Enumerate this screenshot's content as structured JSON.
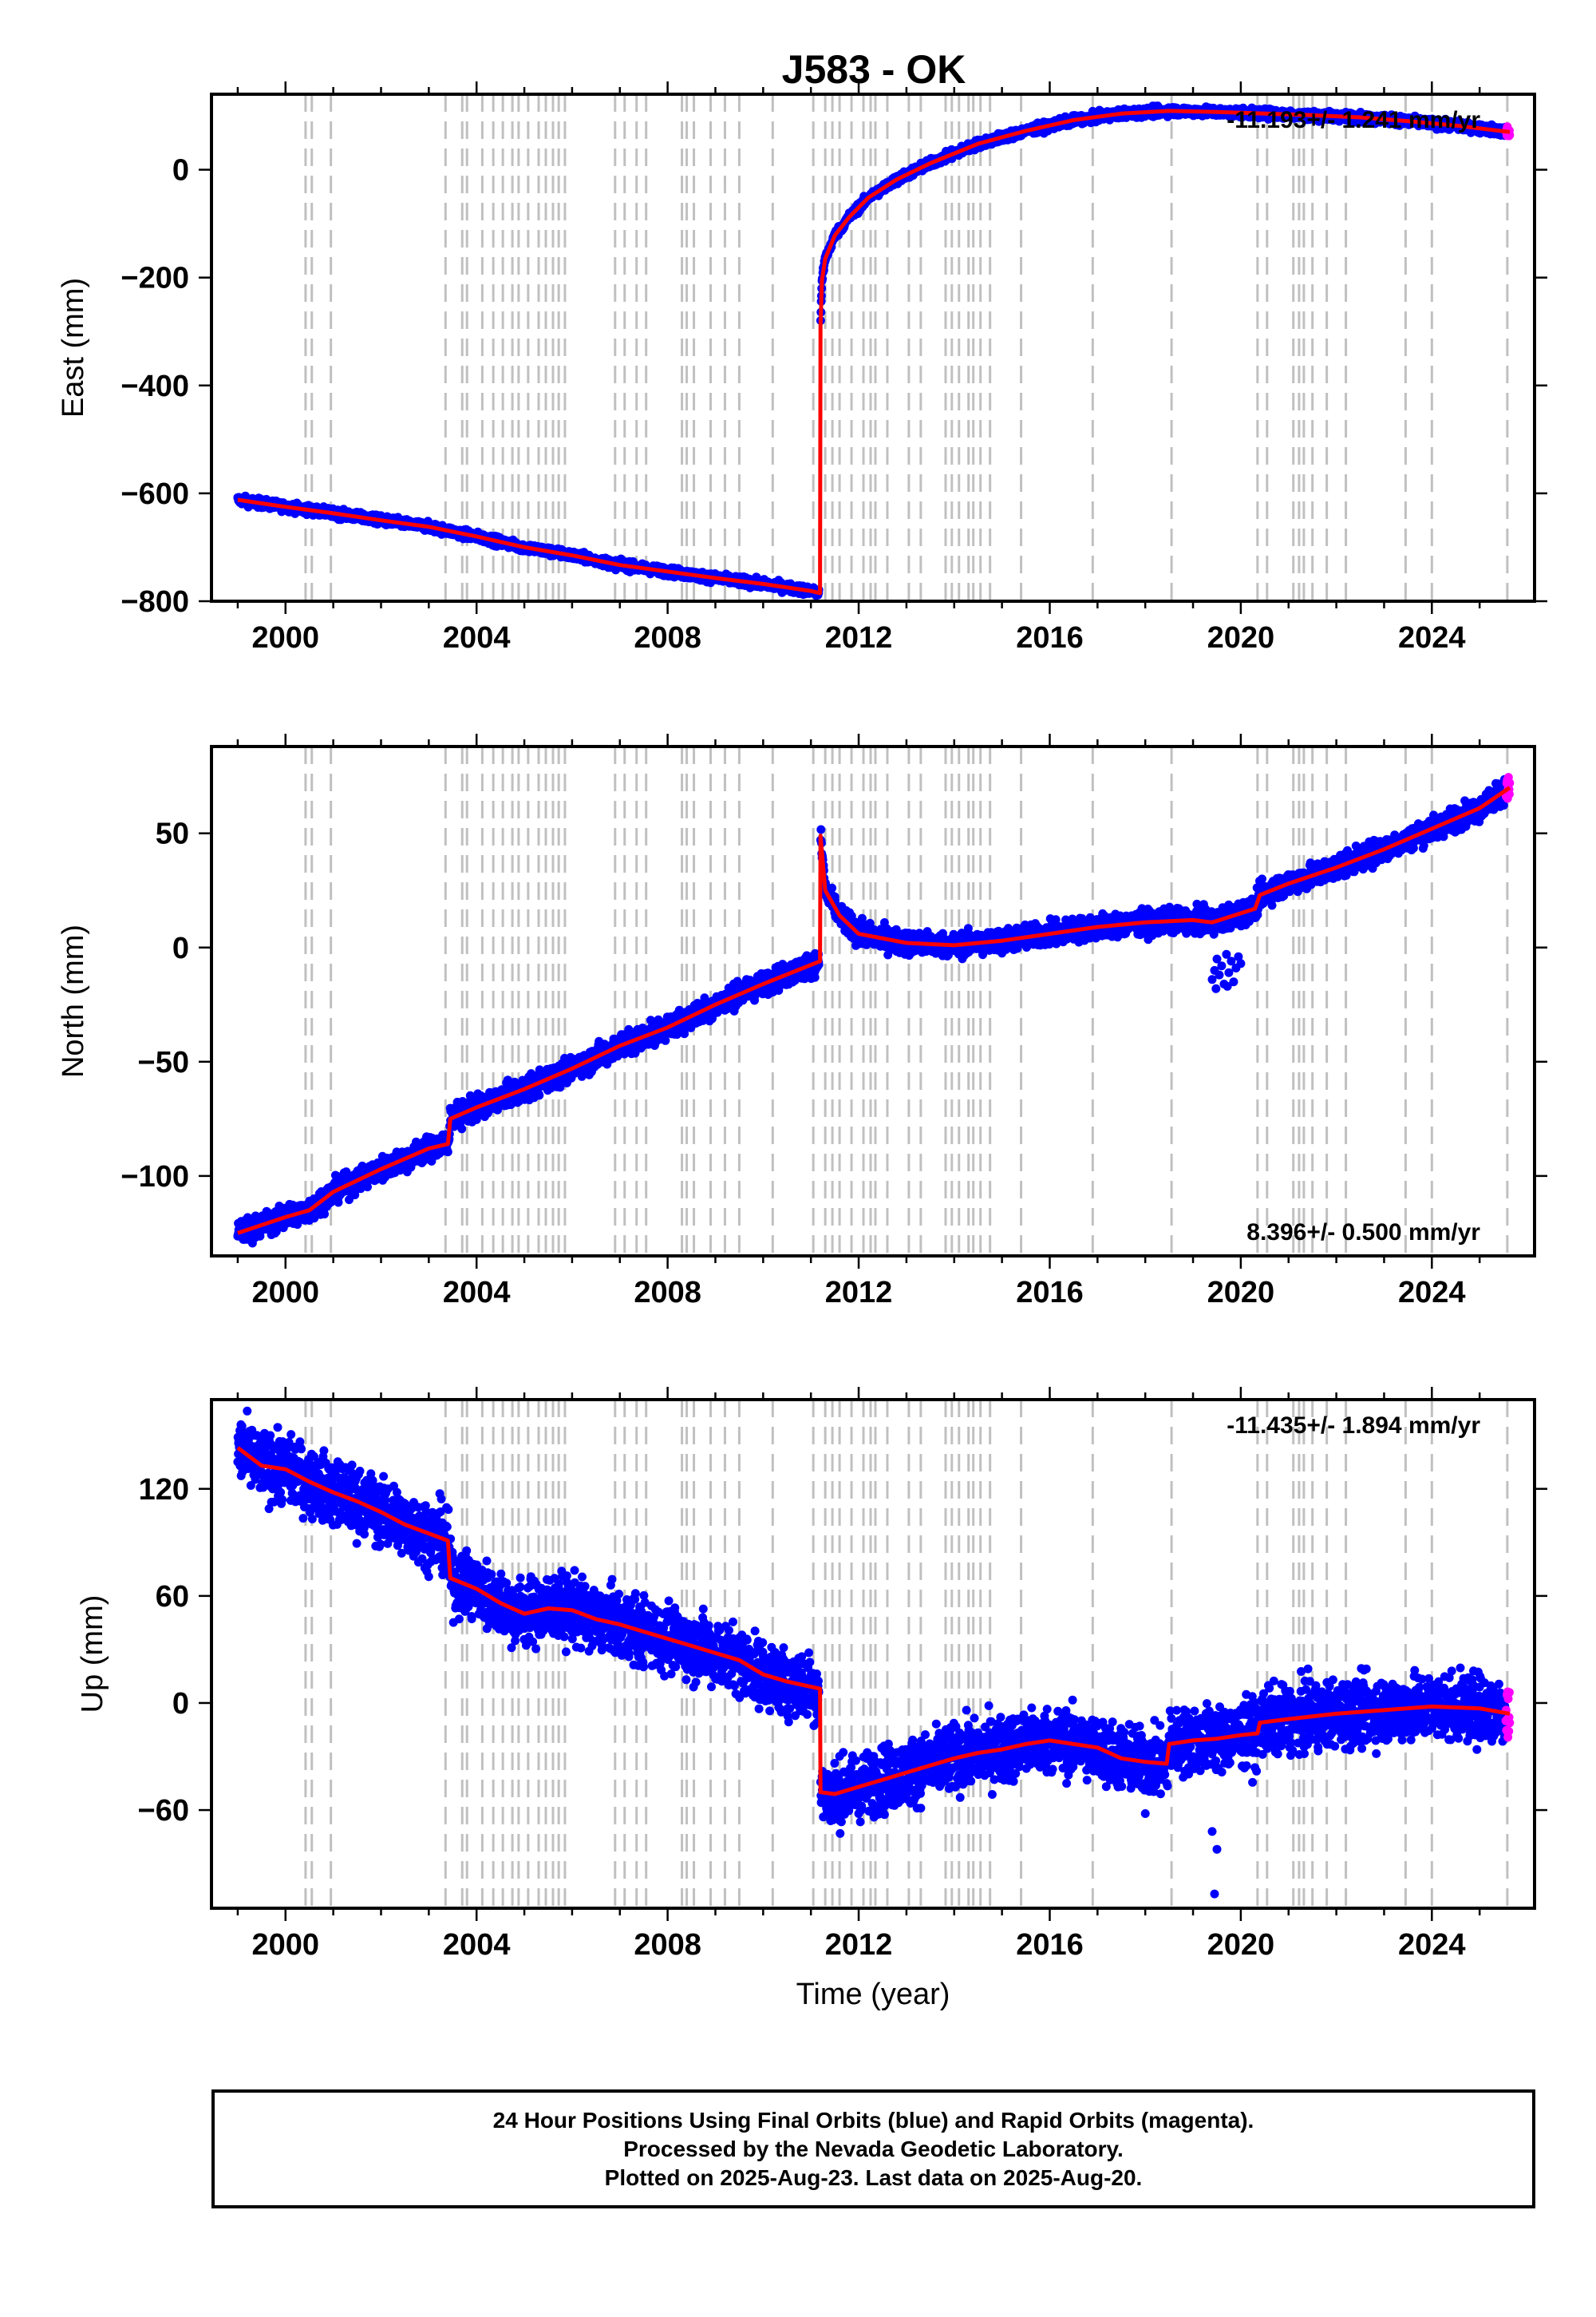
{
  "chart_data": [
    {
      "type": "scatter",
      "title": "J583 - OK",
      "ylabel": "East (mm)",
      "xlabel": "",
      "xlim": [
        1998.45,
        2026.15
      ],
      "ylim": [
        -800,
        140
      ],
      "xticks": [
        2000,
        2004,
        2008,
        2012,
        2016,
        2020,
        2024
      ],
      "xtick_labels": [
        "2000",
        "2004",
        "2008",
        "2012",
        "2016",
        "2020",
        "2024"
      ],
      "yticks": [
        -800,
        -600,
        -400,
        -200,
        0
      ],
      "ytick_labels": [
        "−800",
        "−600",
        "−400",
        "−200",
        "0"
      ],
      "rate_label": "-11.193+/- 1.241 mm/yr",
      "rate_position": "top-right",
      "colors": {
        "final": "#0000ff",
        "rapid": "#ff00ff",
        "model": "#ff0000",
        "events": "#c0c0c0"
      },
      "noise": 4,
      "model": [
        [
          1999.0,
          -612
        ],
        [
          2000.0,
          -625
        ],
        [
          2001.0,
          -637
        ],
        [
          2002.0,
          -650
        ],
        [
          2003.0,
          -662
        ],
        [
          2004.0,
          -680
        ],
        [
          2005.0,
          -700
        ],
        [
          2006.0,
          -715
        ],
        [
          2007.0,
          -733
        ],
        [
          2008.0,
          -745
        ],
        [
          2009.0,
          -757
        ],
        [
          2010.0,
          -768
        ],
        [
          2011.0,
          -781
        ],
        [
          2011.19,
          -785
        ],
        [
          2011.2,
          -290
        ],
        [
          2011.23,
          -205
        ],
        [
          2011.3,
          -165
        ],
        [
          2011.5,
          -122
        ],
        [
          2011.8,
          -88
        ],
        [
          2012.2,
          -52
        ],
        [
          2012.8,
          -18
        ],
        [
          2013.5,
          12
        ],
        [
          2014.5,
          48
        ],
        [
          2015.5,
          72
        ],
        [
          2016.5,
          92
        ],
        [
          2017.5,
          104
        ],
        [
          2018.5,
          109
        ],
        [
          2019.5,
          107
        ],
        [
          2020.5,
          104
        ],
        [
          2021.5,
          101
        ],
        [
          2022.5,
          97
        ],
        [
          2023.5,
          90
        ],
        [
          2024.5,
          82
        ],
        [
          2025.63,
          70
        ]
      ],
      "rapid_window": [
        2025.55,
        2025.63
      ]
    },
    {
      "type": "scatter",
      "title": "",
      "ylabel": "North (mm)",
      "xlabel": "",
      "xlim": [
        1998.45,
        2026.15
      ],
      "ylim": [
        -135,
        88
      ],
      "xticks": [
        2000,
        2004,
        2008,
        2012,
        2016,
        2020,
        2024
      ],
      "xtick_labels": [
        "2000",
        "2004",
        "2008",
        "2012",
        "2016",
        "2020",
        "2024"
      ],
      "yticks": [
        -100,
        -50,
        0,
        50
      ],
      "ytick_labels": [
        "−100",
        "−50",
        "0",
        "50"
      ],
      "rate_label": "8.396+/- 0.500 mm/yr",
      "rate_position": "bottom-right",
      "colors": {
        "final": "#0000ff",
        "rapid": "#ff00ff",
        "model": "#ff0000",
        "events": "#c0c0c0"
      },
      "noise": 2.5,
      "model": [
        [
          1999.0,
          -125
        ],
        [
          2000.0,
          -118
        ],
        [
          2000.5,
          -115
        ],
        [
          2001.0,
          -107
        ],
        [
          2002.0,
          -97
        ],
        [
          2003.0,
          -88
        ],
        [
          2003.4,
          -86
        ],
        [
          2003.45,
          -75
        ],
        [
          2004.0,
          -70
        ],
        [
          2005.0,
          -62
        ],
        [
          2006.0,
          -53
        ],
        [
          2007.0,
          -43
        ],
        [
          2008.0,
          -35
        ],
        [
          2009.0,
          -25
        ],
        [
          2010.0,
          -16
        ],
        [
          2011.19,
          -6
        ],
        [
          2011.2,
          49
        ],
        [
          2011.3,
          25
        ],
        [
          2011.6,
          14
        ],
        [
          2012.0,
          6
        ],
        [
          2013.0,
          2
        ],
        [
          2014.0,
          1
        ],
        [
          2015.0,
          3
        ],
        [
          2016.0,
          6
        ],
        [
          2017.0,
          9
        ],
        [
          2018.0,
          11
        ],
        [
          2019.0,
          12
        ],
        [
          2019.4,
          11
        ],
        [
          2020.3,
          17
        ],
        [
          2020.4,
          23
        ],
        [
          2021.0,
          28
        ],
        [
          2022.0,
          35
        ],
        [
          2023.0,
          43
        ],
        [
          2024.0,
          52
        ],
        [
          2025.0,
          61
        ],
        [
          2025.63,
          70
        ]
      ],
      "outliers": [
        [
          2019.4,
          -14
        ],
        [
          2019.45,
          -10
        ],
        [
          2019.5,
          -5
        ],
        [
          2019.55,
          -12
        ],
        [
          2019.6,
          -8
        ],
        [
          2019.65,
          -16
        ],
        [
          2019.7,
          -3
        ],
        [
          2019.75,
          -11
        ],
        [
          2019.8,
          -6
        ],
        [
          2019.85,
          -15
        ],
        [
          2019.9,
          -9
        ],
        [
          2019.95,
          -4
        ],
        [
          2020.0,
          -7
        ],
        [
          2019.48,
          -18
        ],
        [
          2019.72,
          -17
        ]
      ],
      "rapid_window": [
        2025.55,
        2025.63
      ]
    },
    {
      "type": "scatter",
      "title": "",
      "ylabel": "Up (mm)",
      "xlabel": "Time (year)",
      "xlim": [
        1998.45,
        2026.15
      ],
      "ylim": [
        -115,
        170
      ],
      "xticks": [
        2000,
        2004,
        2008,
        2012,
        2016,
        2020,
        2024
      ],
      "xtick_labels": [
        "2000",
        "2004",
        "2008",
        "2012",
        "2016",
        "2020",
        "2024"
      ],
      "yticks": [
        -60,
        0,
        60,
        120
      ],
      "ytick_labels": [
        "−60",
        "0",
        "60",
        "120"
      ],
      "rate_label": "-11.435+/- 1.894 mm/yr",
      "rate_position": "top-right",
      "colors": {
        "final": "#0000ff",
        "rapid": "#ff00ff",
        "model": "#ff0000",
        "events": "#c0c0c0"
      },
      "noise": 9,
      "model": [
        [
          1999.0,
          143
        ],
        [
          1999.5,
          133
        ],
        [
          2000.0,
          131
        ],
        [
          2000.5,
          124
        ],
        [
          2001.0,
          118
        ],
        [
          2001.5,
          113
        ],
        [
          2002.0,
          107
        ],
        [
          2002.5,
          100
        ],
        [
          2003.0,
          95
        ],
        [
          2003.4,
          91
        ],
        [
          2003.45,
          70
        ],
        [
          2004.0,
          64
        ],
        [
          2004.5,
          56
        ],
        [
          2005.0,
          50
        ],
        [
          2005.5,
          53
        ],
        [
          2006.0,
          52
        ],
        [
          2006.5,
          47
        ],
        [
          2007.0,
          44
        ],
        [
          2007.5,
          40
        ],
        [
          2008.0,
          36
        ],
        [
          2008.5,
          32
        ],
        [
          2009.0,
          28
        ],
        [
          2009.5,
          24
        ],
        [
          2010.0,
          16
        ],
        [
          2010.5,
          12
        ],
        [
          2011.19,
          8
        ],
        [
          2011.2,
          -50
        ],
        [
          2011.5,
          -51
        ],
        [
          2012.0,
          -47
        ],
        [
          2012.5,
          -43
        ],
        [
          2013.0,
          -39
        ],
        [
          2013.5,
          -35
        ],
        [
          2014.0,
          -31
        ],
        [
          2014.5,
          -28
        ],
        [
          2015.0,
          -26
        ],
        [
          2015.5,
          -23
        ],
        [
          2016.0,
          -21
        ],
        [
          2016.5,
          -23
        ],
        [
          2017.0,
          -25
        ],
        [
          2017.5,
          -31
        ],
        [
          2018.0,
          -33
        ],
        [
          2018.45,
          -34
        ],
        [
          2018.5,
          -23
        ],
        [
          2019.0,
          -21
        ],
        [
          2019.5,
          -20
        ],
        [
          2020.0,
          -18
        ],
        [
          2020.35,
          -17
        ],
        [
          2020.4,
          -11
        ],
        [
          2021.0,
          -9
        ],
        [
          2022.0,
          -6
        ],
        [
          2023.0,
          -4
        ],
        [
          2024.0,
          -2
        ],
        [
          2025.0,
          -3
        ],
        [
          2025.63,
          -6
        ]
      ],
      "outliers": [
        [
          2019.45,
          -107
        ],
        [
          2019.5,
          -82
        ],
        [
          2018.0,
          -62
        ],
        [
          2019.4,
          -72
        ],
        [
          2012.0,
          -62
        ]
      ],
      "rapid_window": [
        2025.55,
        2025.63
      ]
    }
  ],
  "event_lines": [
    2000.42,
    2000.55,
    2000.95,
    2003.35,
    2003.7,
    2003.8,
    2004.12,
    2004.35,
    2004.55,
    2004.75,
    2004.88,
    2005.08,
    2005.3,
    2005.45,
    2005.6,
    2005.72,
    2005.85,
    2006.9,
    2007.1,
    2007.35,
    2007.55,
    2008.3,
    2008.4,
    2008.55,
    2008.9,
    2009.2,
    2009.5,
    2010.2,
    2011.05,
    2011.3,
    2011.45,
    2011.6,
    2011.85,
    2012.1,
    2012.25,
    2012.35,
    2012.6,
    2013.05,
    2013.3,
    2013.82,
    2013.95,
    2014.1,
    2014.3,
    2014.4,
    2014.55,
    2014.75,
    2015.4,
    2016.9,
    2018.55,
    2020.35,
    2020.55,
    2021.1,
    2021.22,
    2021.32,
    2021.5,
    2021.8,
    2022.2,
    2023.45,
    2024.0,
    2025.58
  ],
  "footer": {
    "line1": "24 Hour Positions Using Final Orbits (blue) and Rapid Orbits (magenta).",
    "line2": "Processed by the Nevada Geodetic Laboratory.",
    "line3": "Plotted on 2025-Aug-23. Last data on 2025-Aug-20."
  }
}
